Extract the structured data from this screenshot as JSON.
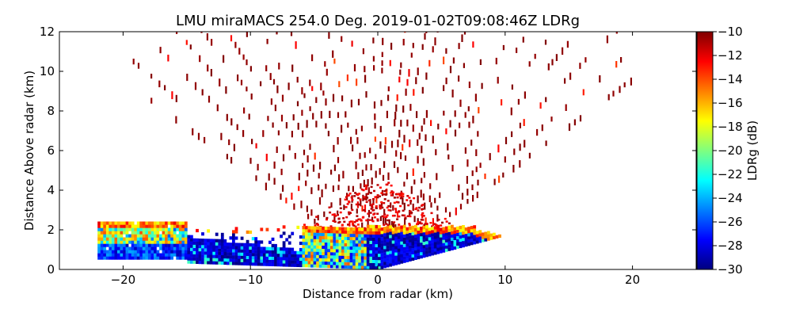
{
  "chart_data": {
    "type": "heatmap",
    "title": "LMU miraMACS 254.0 Deg. 2019-01-02T09:08:46Z  LDRg",
    "xlabel": "Distance from radar (km)",
    "ylabel": "Distance Above radar  (km)",
    "xlim": [
      -25,
      25
    ],
    "ylim": [
      0,
      12
    ],
    "x_ticks": [
      -20,
      -10,
      0,
      10,
      20
    ],
    "x_tick_labels": [
      "−20",
      "−10",
      "0",
      "10",
      "20"
    ],
    "y_ticks": [
      0,
      2,
      4,
      6,
      8,
      10,
      12
    ],
    "y_tick_labels": [
      "0",
      "2",
      "4",
      "6",
      "8",
      "10",
      "12"
    ],
    "grid": false,
    "scan": {
      "instrument": "LMU miraMACS",
      "azimuth_deg": 254.0,
      "time": "2019-01-02T09:08:46Z",
      "field": "LDRg",
      "x_extent_km": [
        -22,
        21.8
      ],
      "max_range_km": 22,
      "boundary_layer_top_km": 2.1,
      "low_level_ldr_db": -27,
      "upper_ldr_db": -10.5
    },
    "colorbar": {
      "label": "LDRg (dB)",
      "range": [
        -30,
        -10
      ],
      "ticks": [
        -10,
        -12,
        -14,
        -16,
        -18,
        -20,
        -22,
        -24,
        -26,
        -28,
        -30
      ],
      "tick_labels": [
        "−10",
        "−12",
        "−14",
        "−16",
        "−18",
        "−20",
        "−22",
        "−24",
        "−26",
        "−28",
        "−30"
      ],
      "colormap": "jet",
      "colormap_stops": [
        "#00007f",
        "#0000ff",
        "#007fff",
        "#00ffff",
        "#7fff7f",
        "#ffff00",
        "#ff7f00",
        "#ff0000",
        "#7f0000"
      ]
    }
  }
}
